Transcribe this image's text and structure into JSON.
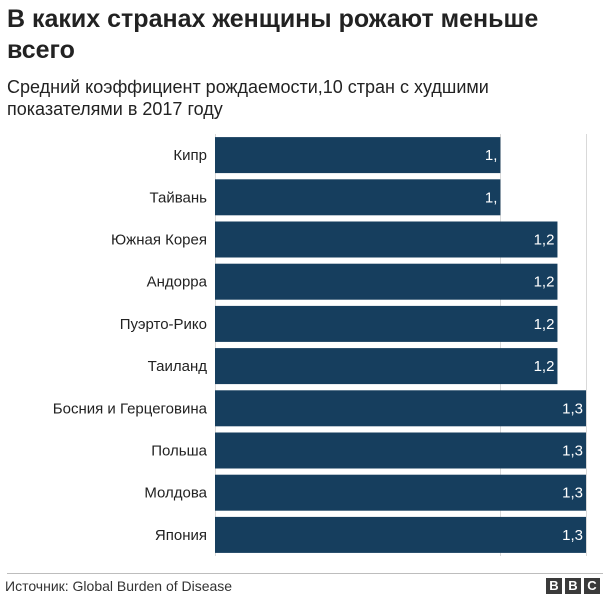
{
  "title": "В каких странах женщины рожают меньше всего",
  "subtitle": "Средний коэффициент рождаемости,10 стран с худшими показателями в 2017 году",
  "source": "Источник: Global Burden of Disease",
  "logo": {
    "letters": [
      "B",
      "B",
      "C"
    ]
  },
  "colors": {
    "bar": "#163e5e",
    "label_text": "#ffffff",
    "grid": "#d9d9d9",
    "text": "#222222"
  },
  "chart_data": {
    "type": "bar",
    "orientation": "horizontal",
    "title": "В каких странах женщины рожают меньше всего",
    "subtitle": "Средний коэффициент рождаемости,10 стран с худшими показателями в 2017 году",
    "xlabel": "",
    "ylabel": "",
    "xlim": [
      0,
      1.3
    ],
    "categories": [
      "Кипр",
      "Тайвань",
      "Южная Корея",
      "Андорра",
      "Пуэрто-Рико",
      "Таиланд",
      "Босния и Герцеговина",
      "Польша",
      "Молдова",
      "Япония"
    ],
    "values": [
      1.0,
      1.0,
      1.2,
      1.2,
      1.2,
      1.2,
      1.3,
      1.3,
      1.3,
      1.3
    ],
    "value_labels": [
      "1,",
      "1,",
      "1,2",
      "1,2",
      "1,2",
      "1,2",
      "1,3",
      "1,3",
      "1,3",
      "1,3"
    ],
    "gridlines_at": [
      0,
      1.0,
      1.3
    ]
  }
}
